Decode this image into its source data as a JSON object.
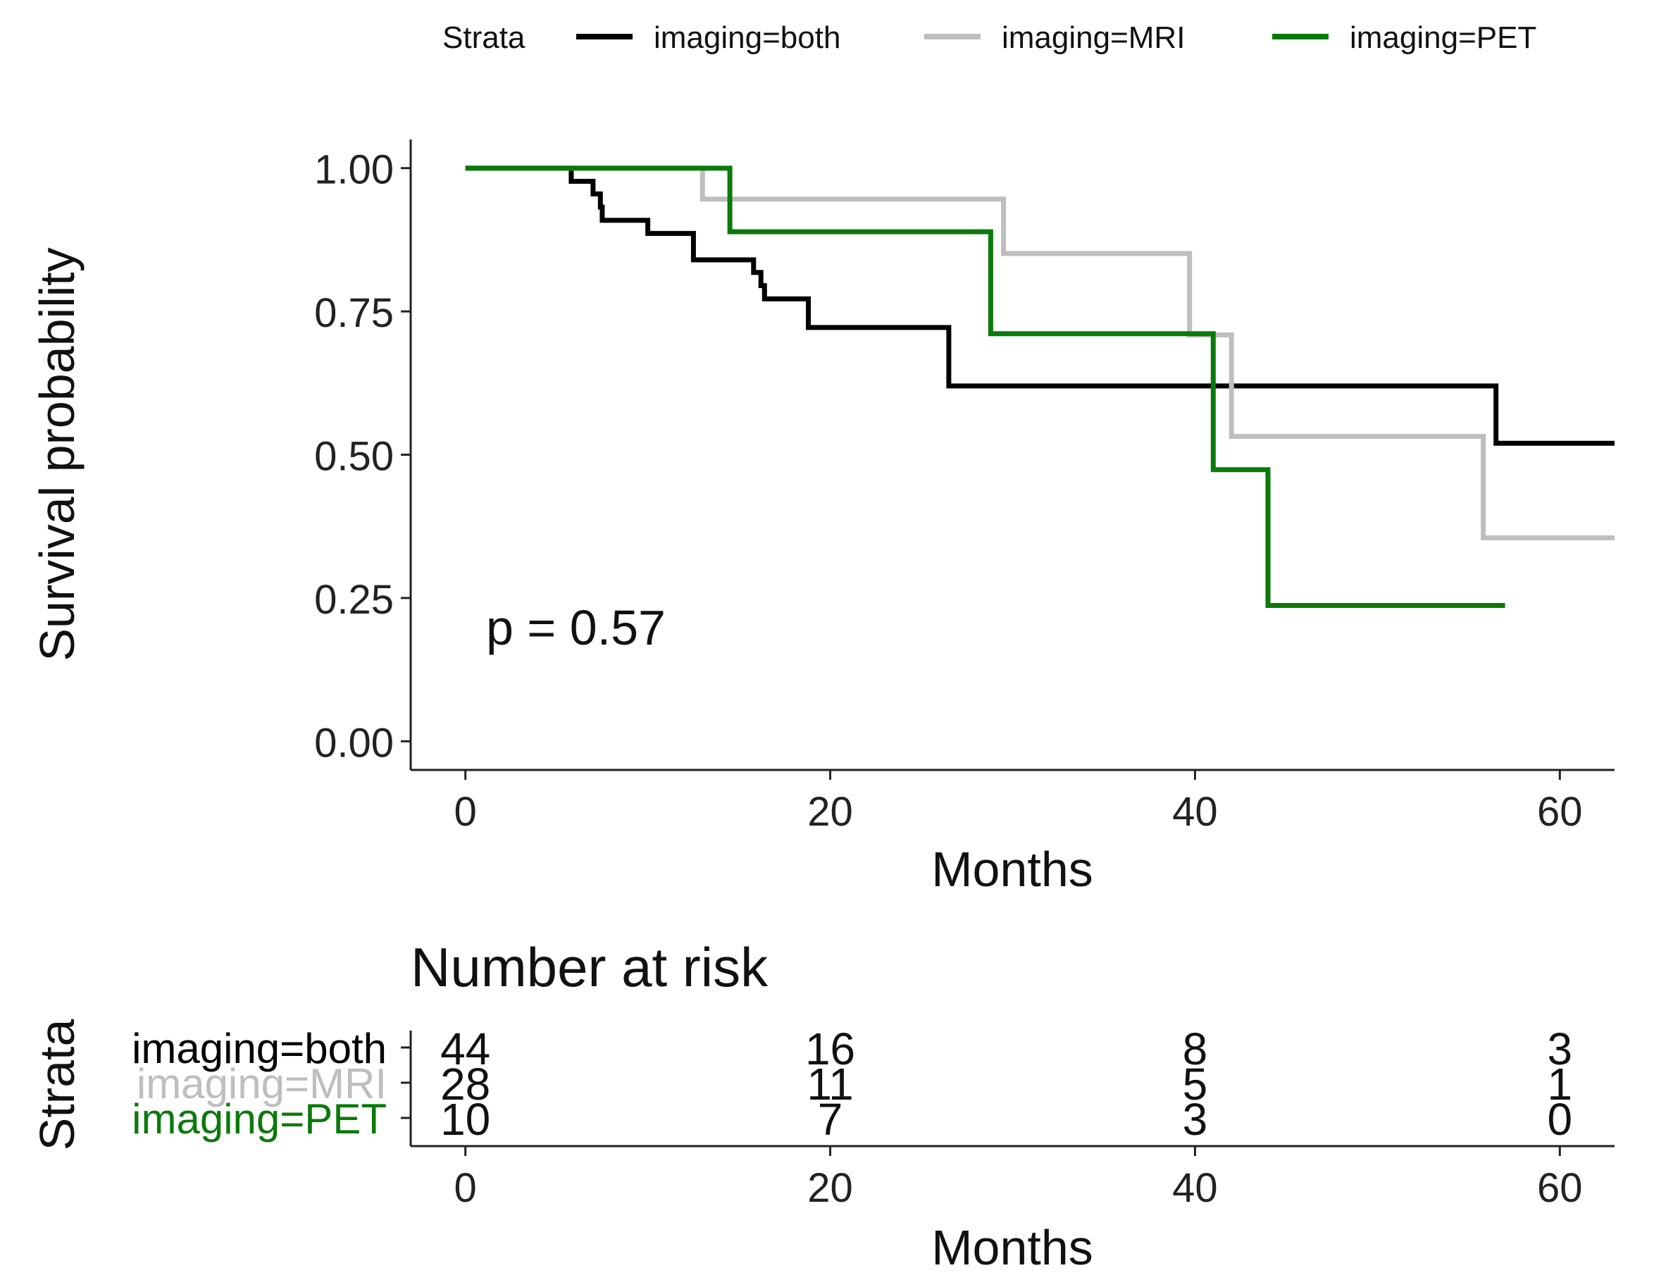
{
  "chart_data": {
    "type": "line",
    "legend": {
      "title": "Strata",
      "placement": "top"
    },
    "annotation": "p = 0.57",
    "xlabel": "Months",
    "ylabel": "Survival probability",
    "xlim": [
      -3,
      63
    ],
    "ylim": [
      -0.05,
      1.05
    ],
    "x_ticks": [
      0,
      20,
      40,
      60
    ],
    "y_ticks": [
      0.0,
      0.25,
      0.5,
      0.75,
      1.0
    ],
    "y_tick_labels": [
      "0.00",
      "0.25",
      "0.50",
      "0.75",
      "1.00"
    ],
    "grid": false,
    "series": [
      {
        "name": "imaging=both",
        "color": "#000000",
        "steps": [
          [
            0,
            1.0
          ],
          [
            5.8,
            0.977
          ],
          [
            7.0,
            0.955
          ],
          [
            7.4,
            0.932
          ],
          [
            7.5,
            0.909
          ],
          [
            10.0,
            0.886
          ],
          [
            12.5,
            0.84
          ],
          [
            15.8,
            0.818
          ],
          [
            16.2,
            0.795
          ],
          [
            16.4,
            0.772
          ],
          [
            18.8,
            0.722
          ],
          [
            26.5,
            0.62
          ],
          [
            56.5,
            0.52
          ],
          [
            63,
            0.52
          ]
        ]
      },
      {
        "name": "imaging=MRI",
        "color": "#BEBEBE",
        "steps": [
          [
            0,
            1.0
          ],
          [
            13.0,
            0.946
          ],
          [
            29.5,
            0.851
          ],
          [
            39.7,
            0.709
          ],
          [
            42.0,
            0.532
          ],
          [
            55.8,
            0.355
          ],
          [
            63,
            0.355
          ]
        ]
      },
      {
        "name": "imaging=PET",
        "color": "#0A7A0A",
        "steps": [
          [
            0,
            1.0
          ],
          [
            14.5,
            0.889
          ],
          [
            28.8,
            0.711
          ],
          [
            41.0,
            0.474
          ],
          [
            44.0,
            0.237
          ],
          [
            57.0,
            0.237
          ]
        ]
      }
    ],
    "risk_table": {
      "title": "Number at risk",
      "ylabel": "Strata",
      "xlabel": "Months",
      "times": [
        0,
        20,
        40,
        60
      ],
      "rows": [
        {
          "name": "imaging=both",
          "color": "#000000",
          "counts": [
            "44",
            "16",
            "8",
            "3"
          ]
        },
        {
          "name": "imaging=MRI",
          "color": "#BEBEBE",
          "counts": [
            "28",
            "11",
            "5",
            "1"
          ]
        },
        {
          "name": "imaging=PET",
          "color": "#0A7A0A",
          "counts": [
            "10",
            "7",
            "3",
            "0"
          ]
        }
      ]
    }
  }
}
